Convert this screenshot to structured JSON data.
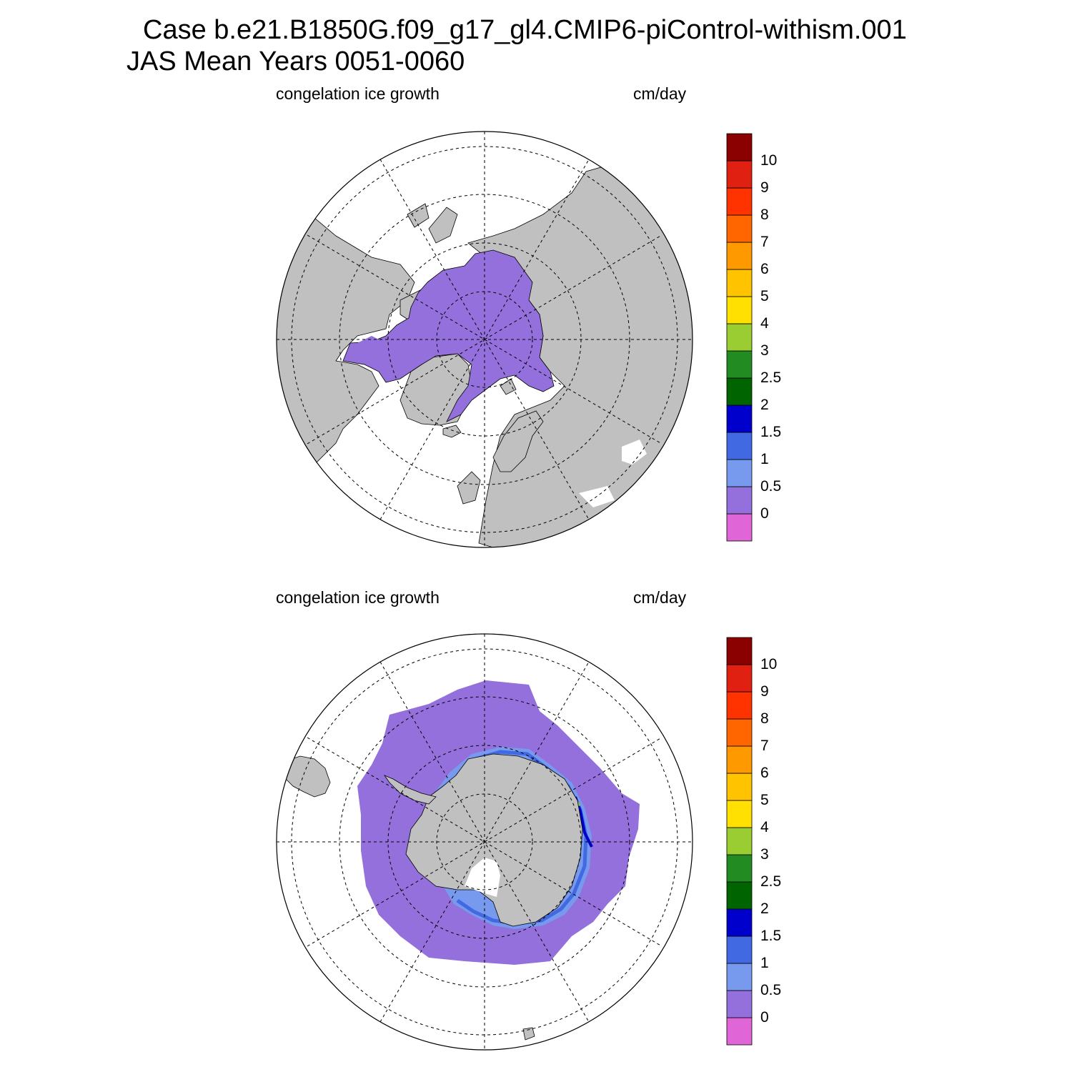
{
  "figure": {
    "title_line1": "Case b.e21.B1850G.f09_g17_gl4.CMIP6-piControl-withism.001",
    "title_line2": "JAS Mean   Years 0051-0060"
  },
  "panels": [
    {
      "id": "north",
      "hemisphere": "Northern",
      "variable_label": "congelation ice growth",
      "units_label": "cm/day"
    },
    {
      "id": "south",
      "hemisphere": "Southern",
      "variable_label": "congelation ice growth",
      "units_label": "cm/day"
    }
  ],
  "colorbar": {
    "colors": [
      "#e066d8",
      "#9370db",
      "#7799ee",
      "#4169e1",
      "#0000cd",
      "#006400",
      "#228b22",
      "#9acd32",
      "#ffe000",
      "#ffc300",
      "#ff9900",
      "#ff6600",
      "#ff3300",
      "#e02010",
      "#8b0000"
    ],
    "labels": [
      "0",
      "0.5",
      "1",
      "1.5",
      "2",
      "2.5",
      "3",
      "4",
      "5",
      "6",
      "7",
      "8",
      "9",
      "10"
    ]
  },
  "map_colors": {
    "land": "#c0c0c0",
    "ice_growth_low": "#9370db",
    "ice_growth_mid": "#7799ee",
    "ice_growth_high": "#4169e1",
    "ice_growth_max": "#0000cd",
    "ocean": "#ffffff"
  }
}
